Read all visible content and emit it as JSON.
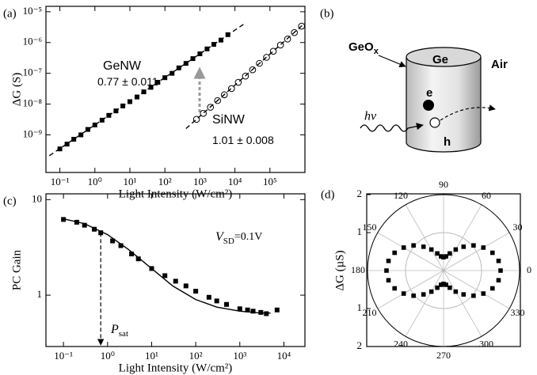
{
  "chart_data": [
    {
      "type": "scatter",
      "panel_label": "(a)",
      "xlabel": "Light Intensity (W/cm²)",
      "ylabel": "ΔG (S)",
      "xscale": "log",
      "yscale": "log",
      "xlim": [
        0.04,
        1000000
      ],
      "ylim": [
        6e-11,
        1.5e-05
      ],
      "xticks": [
        {
          "value": 0.1,
          "label": "10⁻¹"
        },
        {
          "value": 1,
          "label": "10⁰"
        },
        {
          "value": 10,
          "label": "10¹"
        },
        {
          "value": 100,
          "label": "10²"
        },
        {
          "value": 1000,
          "label": "10³"
        },
        {
          "value": 10000,
          "label": "10⁴"
        },
        {
          "value": 100000,
          "label": "10⁵"
        }
      ],
      "yticks": [
        {
          "value": 1e-09,
          "label": "10⁻⁹"
        },
        {
          "value": 1e-08,
          "label": "10⁻⁸"
        },
        {
          "value": 1e-07,
          "label": "10⁻⁷"
        },
        {
          "value": 1e-06,
          "label": "10⁻⁶"
        },
        {
          "value": 1e-05,
          "label": "10⁻⁵"
        }
      ],
      "series": [
        {
          "name": "GeNW",
          "marker": "square",
          "color": "#000000",
          "x": [
            0.1,
            0.16,
            0.25,
            0.4,
            0.63,
            1,
            1.6,
            2.5,
            4,
            6.3,
            10,
            16,
            25,
            40,
            63,
            100,
            160,
            250,
            400,
            630,
            1000,
            1600,
            2500,
            4000,
            6300
          ],
          "values": [
            3.5e-10,
            5e-10,
            7.2e-10,
            1e-09,
            1.5e-09,
            2.1e-09,
            3e-09,
            4.3e-09,
            6e-09,
            8.7e-09,
            1.2e-08,
            1.7e-08,
            2.5e-08,
            3.5e-08,
            5.1e-08,
            7.2e-08,
            1e-07,
            1.5e-07,
            2.1e-07,
            3e-07,
            4.3e-07,
            6.2e-07,
            8.7e-07,
            1.2e-06,
            1.8e-06
          ]
        },
        {
          "style": "dashed",
          "color": "#000000",
          "x": [
            0.05,
            20000
          ],
          "values": [
            2.1e-10,
            4.3e-06
          ]
        },
        {
          "name": "SiNW",
          "marker": "circle",
          "color": "#000000",
          "x": [
            800,
            1250,
            2000,
            3200,
            5000,
            8000,
            12500,
            20000,
            32000,
            50000,
            80000,
            125000,
            200000,
            320000,
            500000,
            800000
          ],
          "values": [
            3.2e-09,
            5e-09,
            7.9e-09,
            1.3e-08,
            2e-08,
            3.2e-08,
            5.1e-08,
            8.1e-08,
            1.3e-07,
            2.1e-07,
            3.3e-07,
            5.2e-07,
            8.3e-07,
            1.3e-06,
            2.1e-06,
            3.4e-06
          ]
        },
        {
          "style": "dashed",
          "color": "#000000",
          "x": [
            400,
            1000000
          ],
          "values": [
            1.6e-09,
            4.3e-06
          ]
        }
      ],
      "annotations": [
        {
          "text": "GeNW"
        },
        {
          "text": "0.77 ± 0.011"
        },
        {
          "text": "SiNW"
        },
        {
          "text": "1.01 ± 0.008"
        }
      ]
    },
    {
      "type": "scatter",
      "panel_label": "(c)",
      "xlabel": "Light Intensity (W/cm²)",
      "ylabel": "PC Gain",
      "xscale": "log",
      "yscale": "log",
      "xlim": [
        0.04,
        30000
      ],
      "ylim": [
        0.29,
        11.5
      ],
      "xticks": [
        {
          "value": 0.1,
          "label": "10⁻¹"
        },
        {
          "value": 1,
          "label": "10⁰"
        },
        {
          "value": 10,
          "label": "10¹"
        },
        {
          "value": 100,
          "label": "10²"
        },
        {
          "value": 1000,
          "label": "10³"
        },
        {
          "value": 10000,
          "label": "10⁴"
        }
      ],
      "yticks": [
        1,
        10
      ],
      "series": [
        {
          "marker": "square",
          "color": "#000000",
          "x": [
            0.1,
            0.2,
            0.3,
            0.5,
            0.7,
            1.3,
            2,
            3.5,
            5,
            10,
            20,
            35,
            60,
            100,
            200,
            300,
            500,
            1000,
            1500,
            2000,
            3000,
            4000,
            7000
          ],
          "values": [
            6.2,
            5.8,
            5.4,
            4.9,
            4.5,
            3.7,
            3.3,
            2.7,
            2.4,
            1.9,
            1.6,
            1.4,
            1.25,
            1.1,
            0.95,
            0.87,
            0.8,
            0.72,
            0.7,
            0.68,
            0.66,
            0.64,
            0.7
          ]
        },
        {
          "style": "solid",
          "color": "#000000",
          "x": [
            0.1,
            0.3,
            1,
            3,
            10,
            30,
            100,
            300,
            1000,
            3000,
            5000
          ],
          "values": [
            6.3,
            5.6,
            4.3,
            3.0,
            1.9,
            1.25,
            0.9,
            0.75,
            0.68,
            0.65,
            0.65
          ]
        }
      ],
      "annotations": [
        {
          "text": "V",
          "sub": "SD",
          "rest": "=0.1V"
        },
        {
          "text": "P",
          "sub": "sat"
        }
      ]
    },
    {
      "type": "polar",
      "panel_label": "(d)",
      "ylabel": "ΔG (µS)",
      "rlim": [
        0,
        2
      ],
      "rticks": [
        1,
        2
      ],
      "thetaticks": [
        0,
        30,
        60,
        90,
        120,
        150,
        180,
        210,
        240,
        270,
        300,
        330
      ],
      "color": "#000000",
      "theta": [
        0,
        10,
        20,
        30,
        40,
        50,
        60,
        70,
        80,
        90,
        100,
        110,
        120,
        130,
        140,
        150,
        160,
        170,
        180,
        190,
        200,
        210,
        220,
        230,
        240,
        250,
        260,
        270,
        280,
        290,
        300,
        310,
        320,
        330,
        340,
        350
      ],
      "values": [
        1.5,
        1.47,
        1.37,
        1.21,
        1.03,
        0.82,
        0.64,
        0.48,
        0.38,
        0.35,
        0.38,
        0.48,
        0.64,
        0.82,
        1.03,
        1.21,
        1.37,
        1.47,
        1.5,
        1.47,
        1.37,
        1.21,
        1.03,
        0.82,
        0.64,
        0.48,
        0.38,
        0.35,
        0.38,
        0.48,
        0.64,
        0.82,
        1.03,
        1.21,
        1.37,
        1.47
      ]
    }
  ],
  "diagram": {
    "panel_label": "(b)",
    "geox": "GeO",
    "geox_sub": "x",
    "ge": "Ge",
    "air": "Air",
    "electron": "e",
    "hole": "h",
    "photon": "hν"
  }
}
